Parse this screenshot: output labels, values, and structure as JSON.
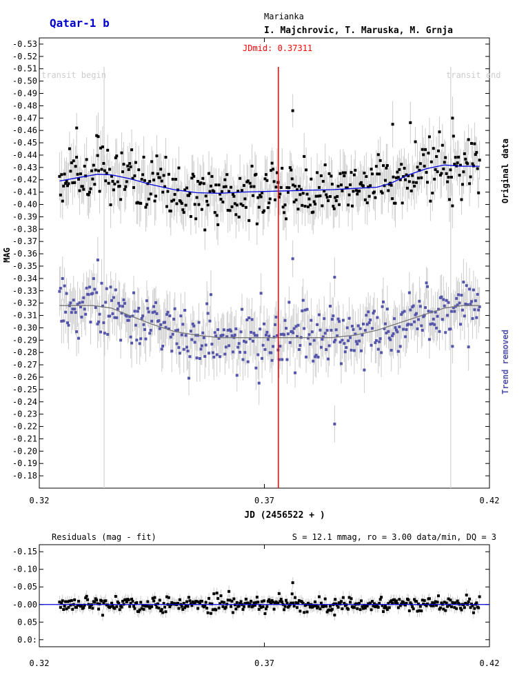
{
  "header": {
    "title": "Qatar-1 b",
    "observatory": "Marianka",
    "observers": "I. Majchrovic, T. Maruska, M. Grnja",
    "jdmid_label": "JDmid: 0.37311"
  },
  "colors": {
    "original_points": "#000000",
    "original_fit": "#0000dd",
    "detrended_points": "#5555aa",
    "detrended_fit": "#777777",
    "error_bars": "#cccccc",
    "jdmid_line": "#ff0000",
    "transit_lines": "#d0d0d0",
    "residual_zero_line": "#0000dd",
    "title": "#0000cc",
    "trend_label": "#5555aa"
  },
  "chart_data": [
    {
      "type": "scatter",
      "title": "Qatar-1 b",
      "xlabel": "JD (2456522 + )",
      "ylabel": "MAG",
      "xlim": [
        0.32,
        0.42
      ],
      "ylim": [
        -0.535,
        -0.17
      ],
      "y_inverted": false,
      "x_ticks": [
        "0.32",
        "0.37",
        "0.42"
      ],
      "y_ticks": [
        "-0.53",
        "-0.52",
        "-0.51",
        "-0.50",
        "-0.49",
        "-0.48",
        "-0.47",
        "-0.46",
        "-0.45",
        "-0.44",
        "-0.43",
        "-0.42",
        "-0.41",
        "-0.40",
        "-0.39",
        "-0.38",
        "-0.37",
        "-0.36",
        "-0.35",
        "-0.34",
        "-0.33",
        "-0.32",
        "-0.31",
        "-0.30",
        "-0.29",
        "-0.28",
        "-0.27",
        "-0.26",
        "-0.25",
        "-0.24",
        "-0.23",
        "-0.22",
        "-0.21",
        "-0.20",
        "-0.19",
        "-0.18"
      ],
      "jdmid": 0.37311,
      "transit_begin": 0.3344,
      "transit_end": 0.4114,
      "transit_begin_label": "transit begin",
      "transit_end_label": "transit end",
      "series": [
        {
          "name": "Original data",
          "x_start": 0.3245,
          "x_end": 0.4178,
          "count": 420,
          "fit": [
            [
              0.3245,
              -0.419
            ],
            [
              0.329,
              -0.422
            ],
            [
              0.333,
              -0.4245
            ],
            [
              0.336,
              -0.424
            ],
            [
              0.34,
              -0.421
            ],
            [
              0.345,
              -0.416
            ],
            [
              0.35,
              -0.412
            ],
            [
              0.355,
              -0.4095
            ],
            [
              0.36,
              -0.409
            ],
            [
              0.365,
              -0.41
            ],
            [
              0.37,
              -0.4105
            ],
            [
              0.375,
              -0.411
            ],
            [
              0.38,
              -0.4115
            ],
            [
              0.385,
              -0.412
            ],
            [
              0.39,
              -0.413
            ],
            [
              0.395,
              -0.414
            ],
            [
              0.398,
              -0.417
            ],
            [
              0.402,
              -0.424
            ],
            [
              0.406,
              -0.429
            ],
            [
              0.41,
              -0.432
            ],
            [
              0.414,
              -0.431
            ],
            [
              0.4178,
              -0.431
            ]
          ],
          "outliers": [
            [
              0.3763,
              -0.476
            ],
            [
              0.3283,
              -0.462
            ],
            [
              0.3331,
              -0.455
            ],
            [
              0.3985,
              -0.465
            ],
            [
              0.4118,
              -0.47
            ]
          ]
        },
        {
          "name": "Trend removed",
          "x_start": 0.3245,
          "x_end": 0.4178,
          "count": 420,
          "fit": [
            [
              0.3245,
              -0.318
            ],
            [
              0.332,
              -0.318
            ],
            [
              0.336,
              -0.316
            ],
            [
              0.34,
              -0.31
            ],
            [
              0.345,
              -0.303
            ],
            [
              0.35,
              -0.297
            ],
            [
              0.355,
              -0.294
            ],
            [
              0.36,
              -0.292
            ],
            [
              0.365,
              -0.292
            ],
            [
              0.37,
              -0.292
            ],
            [
              0.38,
              -0.292
            ],
            [
              0.385,
              -0.292
            ],
            [
              0.39,
              -0.294
            ],
            [
              0.395,
              -0.298
            ],
            [
              0.4,
              -0.304
            ],
            [
              0.405,
              -0.31
            ],
            [
              0.41,
              -0.316
            ],
            [
              0.414,
              -0.318
            ],
            [
              0.4178,
              -0.318
            ]
          ],
          "outliers": [
            [
              0.3763,
              -0.356
            ],
            [
              0.3856,
              -0.341
            ],
            [
              0.3856,
              -0.222
            ],
            [
              0.333,
              -0.355
            ]
          ]
        }
      ],
      "side_labels": [
        "Original data",
        "Trend removed"
      ]
    },
    {
      "type": "scatter",
      "title": "Residuals (mag - fit)",
      "stats_label": "S = 12.1 mmag, ro = 3.00 data/min, DQ = 3",
      "xlim": [
        0.32,
        0.42
      ],
      "ylim": [
        -0.17,
        0.12
      ],
      "x_ticks": [
        "0.32",
        "0.37",
        "0.42"
      ],
      "y_ticks": [
        "-0.15",
        "-0.10",
        "-0.05",
        "-0.00",
        "0.05",
        "0.0:"
      ],
      "zero_line": 0,
      "count": 420,
      "outliers": [
        [
          0.3763,
          -0.062
        ],
        [
          0.3856,
          0.03
        ]
      ]
    }
  ]
}
